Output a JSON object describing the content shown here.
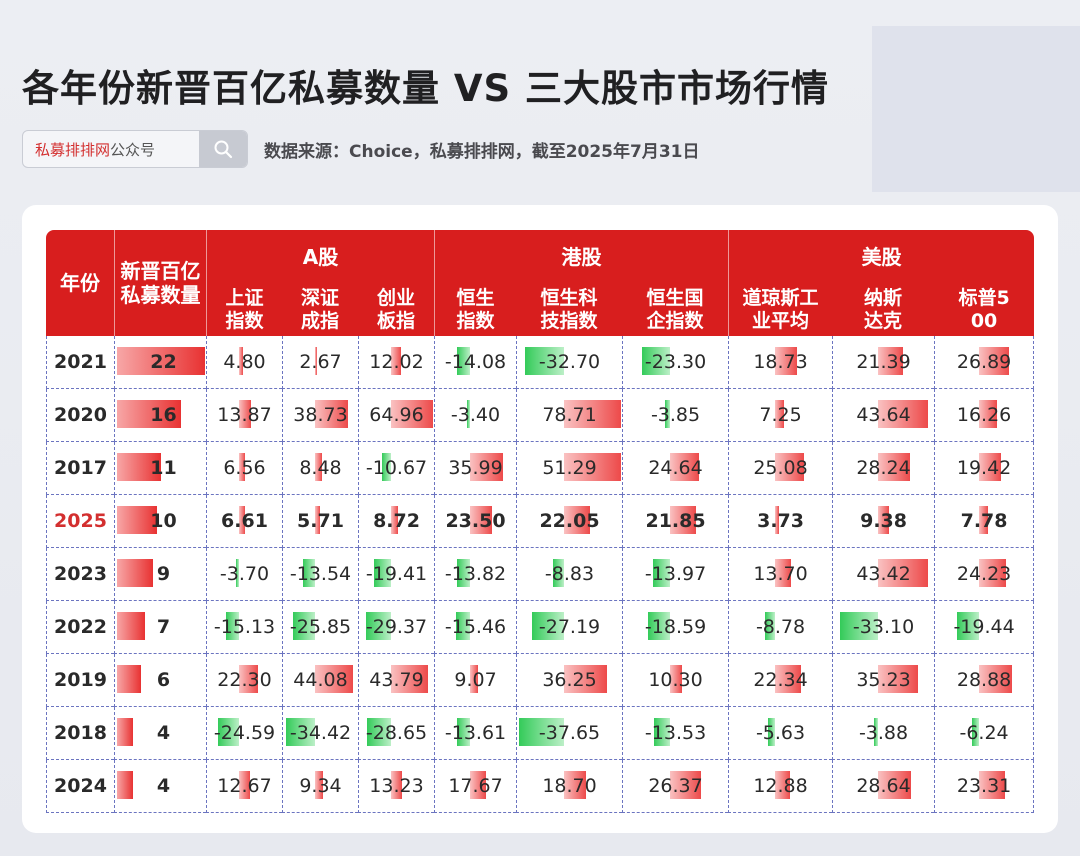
{
  "title": "各年份新晋百亿私募数量 VS 三大股市市场行情",
  "search": {
    "brand": "私募排排网",
    "suffix": "公众号",
    "icon": "search-icon"
  },
  "source": "数据来源：Choice，私募排排网，截至2025年7月31日",
  "watermark": "私募排排网",
  "colors": {
    "header": "#d81e1e",
    "positive": "#e84a4a",
    "negative": "#2fcf5a",
    "highlight_year": "#d32f2f",
    "grid": "#6b74c0"
  },
  "headers": {
    "year": "年份",
    "count": "新晋百亿私募数量",
    "groups": [
      "A股",
      "港股",
      "美股"
    ],
    "columns": [
      "上证指数",
      "深证成指",
      "创业板指",
      "恒生指数",
      "恒生科技指数",
      "恒生国企指数",
      "道琼斯工业平均",
      "纳斯达克",
      "标普500"
    ]
  },
  "chart_data": {
    "type": "table",
    "rows": [
      {
        "year": "2021",
        "count": 22,
        "values": [
          "4.80",
          "2.67",
          "12.02",
          "-14.08",
          "-32.70",
          "-23.30",
          "18.73",
          "21.39",
          "26.89"
        ]
      },
      {
        "year": "2020",
        "count": 16,
        "values": [
          "13.87",
          "38.73",
          "64.96",
          "-3.40",
          "78.71",
          "-3.85",
          "7.25",
          "43.64",
          "16.26"
        ]
      },
      {
        "year": "2017",
        "count": 11,
        "values": [
          "6.56",
          "8.48",
          "-10.67",
          "35.99",
          "51.29",
          "24.64",
          "25.08",
          "28.24",
          "19.42"
        ]
      },
      {
        "year": "2025",
        "count": 10,
        "highlight": true,
        "values": [
          "6.61",
          "5.71",
          "8.72",
          "23.50",
          "22.05",
          "21.85",
          "3.73",
          "9.38",
          "7.78"
        ]
      },
      {
        "year": "2023",
        "count": 9,
        "values": [
          "-3.70",
          "-13.54",
          "-19.41",
          "-13.82",
          "-8.83",
          "-13.97",
          "13.70",
          "43.42",
          "24.23"
        ]
      },
      {
        "year": "2022",
        "count": 7,
        "values": [
          "-15.13",
          "-25.85",
          "-29.37",
          "-15.46",
          "-27.19",
          "-18.59",
          "-8.78",
          "-33.10",
          "-19.44"
        ]
      },
      {
        "year": "2019",
        "count": 6,
        "values": [
          "22.30",
          "44.08",
          "43.79",
          "9.07",
          "36.25",
          "10.30",
          "22.34",
          "35.23",
          "28.88"
        ]
      },
      {
        "year": "2018",
        "count": 4,
        "values": [
          "-24.59",
          "-34.42",
          "-28.65",
          "-13.61",
          "-37.65",
          "-13.53",
          "-5.63",
          "-3.88",
          "-6.24"
        ]
      },
      {
        "year": "2024",
        "count": 4,
        "values": [
          "12.67",
          "9.34",
          "13.23",
          "17.67",
          "18.70",
          "26.37",
          "12.88",
          "28.64",
          "23.31"
        ]
      }
    ]
  }
}
